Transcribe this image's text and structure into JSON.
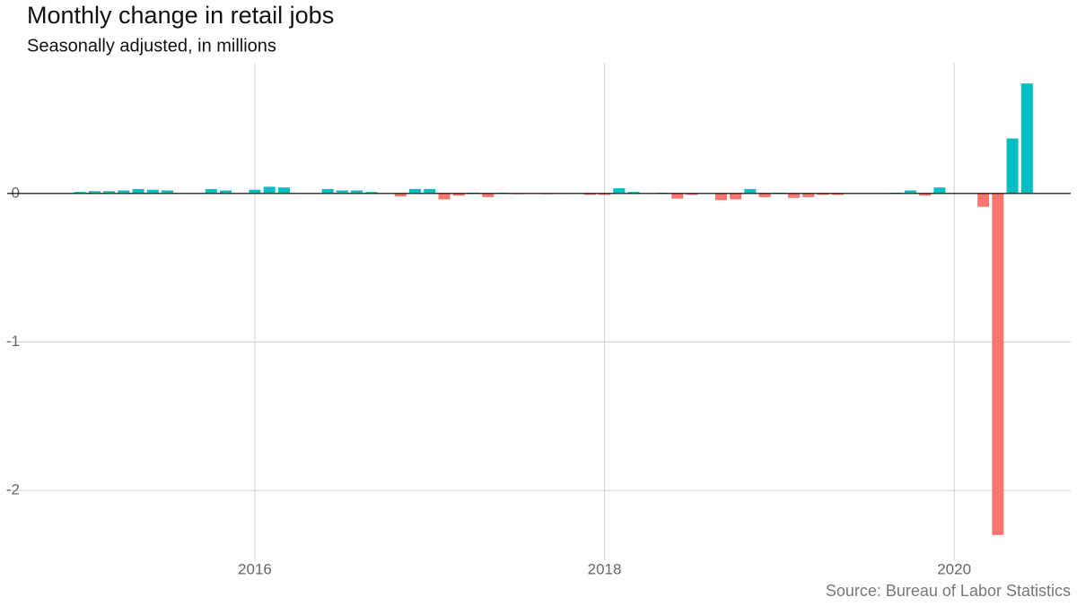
{
  "chart_data": {
    "type": "bar",
    "title": "Monthly change in retail jobs",
    "subtitle": "Seasonally adjusted, in millions",
    "source": "Source: Bureau of Labor Statistics",
    "x": [
      "2015-01",
      "2015-02",
      "2015-03",
      "2015-04",
      "2015-05",
      "2015-06",
      "2015-07",
      "2015-08",
      "2015-09",
      "2015-10",
      "2015-11",
      "2015-12",
      "2016-01",
      "2016-02",
      "2016-03",
      "2016-04",
      "2016-05",
      "2016-06",
      "2016-07",
      "2016-08",
      "2016-09",
      "2016-10",
      "2016-11",
      "2016-12",
      "2017-01",
      "2017-02",
      "2017-03",
      "2017-04",
      "2017-05",
      "2017-06",
      "2017-07",
      "2017-08",
      "2017-09",
      "2017-10",
      "2017-11",
      "2017-12",
      "2018-01",
      "2018-02",
      "2018-03",
      "2018-04",
      "2018-05",
      "2018-06",
      "2018-07",
      "2018-08",
      "2018-09",
      "2018-10",
      "2018-11",
      "2018-12",
      "2019-01",
      "2019-02",
      "2019-03",
      "2019-04",
      "2019-05",
      "2019-06",
      "2019-07",
      "2019-08",
      "2019-09",
      "2019-10",
      "2019-11",
      "2019-12",
      "2020-01",
      "2020-02",
      "2020-03",
      "2020-04",
      "2020-05",
      "2020-06"
    ],
    "values": [
      0.01,
      0.015,
      0.015,
      0.02,
      0.03,
      0.025,
      0.02,
      0,
      0,
      0.03,
      0.02,
      0,
      0.025,
      0.045,
      0.04,
      0,
      0,
      0.03,
      0.02,
      0.02,
      0.01,
      0,
      -0.02,
      0.03,
      0.03,
      -0.04,
      -0.015,
      0.005,
      -0.025,
      0.005,
      -0.005,
      0,
      -0.005,
      0,
      0,
      -0.01,
      -0.01,
      0.035,
      0.01,
      0,
      0.005,
      -0.035,
      -0.01,
      0,
      -0.045,
      -0.04,
      0.03,
      -0.025,
      0.005,
      -0.03,
      -0.025,
      -0.01,
      -0.01,
      0,
      0,
      0,
      0.005,
      0.02,
      -0.015,
      0.04,
      0,
      0,
      -0.09,
      -2.3,
      0.37,
      0.74
    ],
    "positive_color": "#00BFC4",
    "negative_color": "#F8766D",
    "xlim": [
      "2014-08",
      "2020-09"
    ],
    "xticks": [
      2016,
      2018,
      2020
    ],
    "ylim": [
      -2.47,
      0.88
    ],
    "yticks": [
      -2,
      -1,
      0
    ],
    "grid": true
  }
}
